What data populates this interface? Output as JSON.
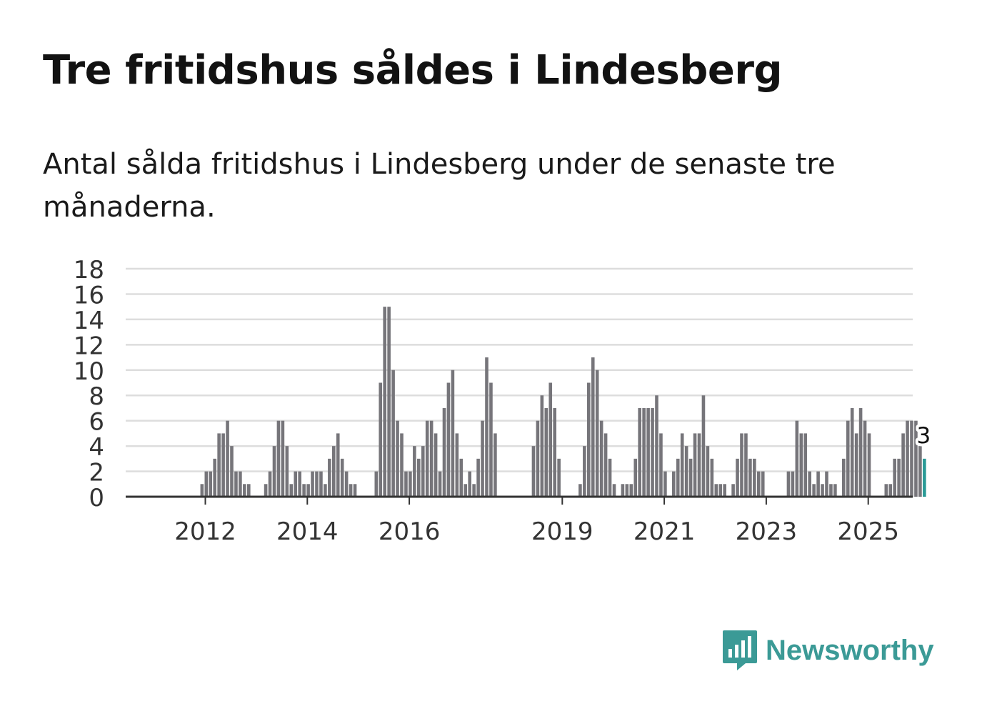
{
  "title": "Tre fritidshus såldes i Lindesberg",
  "subtitle": "Antal sålda fritidshus i Lindesberg under de senaste tre månaderna.",
  "brand": {
    "name": "Newsworthy",
    "color": "#3b9a96",
    "icon": "bar-chart-speech-bubble-icon"
  },
  "colors": {
    "bar": "#76757a",
    "highlight": "#2a9a96",
    "grid": "#dddddd",
    "axis": "#333333"
  },
  "chart_data": {
    "type": "bar",
    "title": "Tre fritidshus såldes i Lindesberg",
    "xlabel": "",
    "ylabel": "",
    "ylim": [
      0,
      18
    ],
    "yticks": [
      0,
      2,
      4,
      6,
      8,
      10,
      12,
      14,
      16,
      18
    ],
    "grid": true,
    "first_period_year": 2011,
    "first_period_month": 3,
    "period_step_months": 1,
    "x_tick_labels": [
      {
        "label": "2012",
        "year": 2012
      },
      {
        "label": "2014",
        "year": 2014
      },
      {
        "label": "2016",
        "year": 2016
      },
      {
        "label": "2019",
        "year": 2019
      },
      {
        "label": "2021",
        "year": 2021
      },
      {
        "label": "2023",
        "year": 2023
      },
      {
        "label": "2025",
        "year": 2025
      }
    ],
    "values": [
      0,
      0,
      0,
      0,
      0,
      0,
      0,
      0,
      0,
      1,
      2,
      2,
      3,
      5,
      5,
      6,
      4,
      2,
      2,
      1,
      1,
      0,
      0,
      0,
      1,
      2,
      4,
      6,
      6,
      4,
      1,
      2,
      2,
      1,
      1,
      2,
      2,
      2,
      1,
      3,
      4,
      5,
      3,
      2,
      1,
      1,
      0,
      0,
      0,
      0,
      2,
      9,
      15,
      15,
      10,
      6,
      5,
      2,
      2,
      4,
      3,
      4,
      6,
      6,
      5,
      2,
      7,
      9,
      10,
      5,
      3,
      1,
      2,
      1,
      3,
      6,
      11,
      9,
      5,
      0,
      0,
      0,
      0,
      0,
      0,
      0,
      0,
      4,
      6,
      8,
      7,
      9,
      7,
      3,
      0,
      0,
      0,
      0,
      1,
      4,
      9,
      11,
      10,
      6,
      5,
      3,
      1,
      0,
      1,
      1,
      1,
      3,
      7,
      7,
      7,
      7,
      8,
      5,
      2,
      0,
      2,
      3,
      5,
      4,
      3,
      5,
      5,
      8,
      4,
      3,
      1,
      1,
      1,
      0,
      1,
      3,
      5,
      5,
      3,
      3,
      2,
      2,
      0,
      0,
      0,
      0,
      0,
      2,
      2,
      6,
      5,
      5,
      2,
      1,
      2,
      1,
      2,
      1,
      1,
      0,
      3,
      6,
      7,
      5,
      7,
      6,
      5,
      0,
      0,
      0,
      1,
      1,
      3,
      3,
      5,
      6,
      6,
      6,
      4,
      3
    ],
    "highlight_label": "3",
    "highlight_index": "last"
  }
}
